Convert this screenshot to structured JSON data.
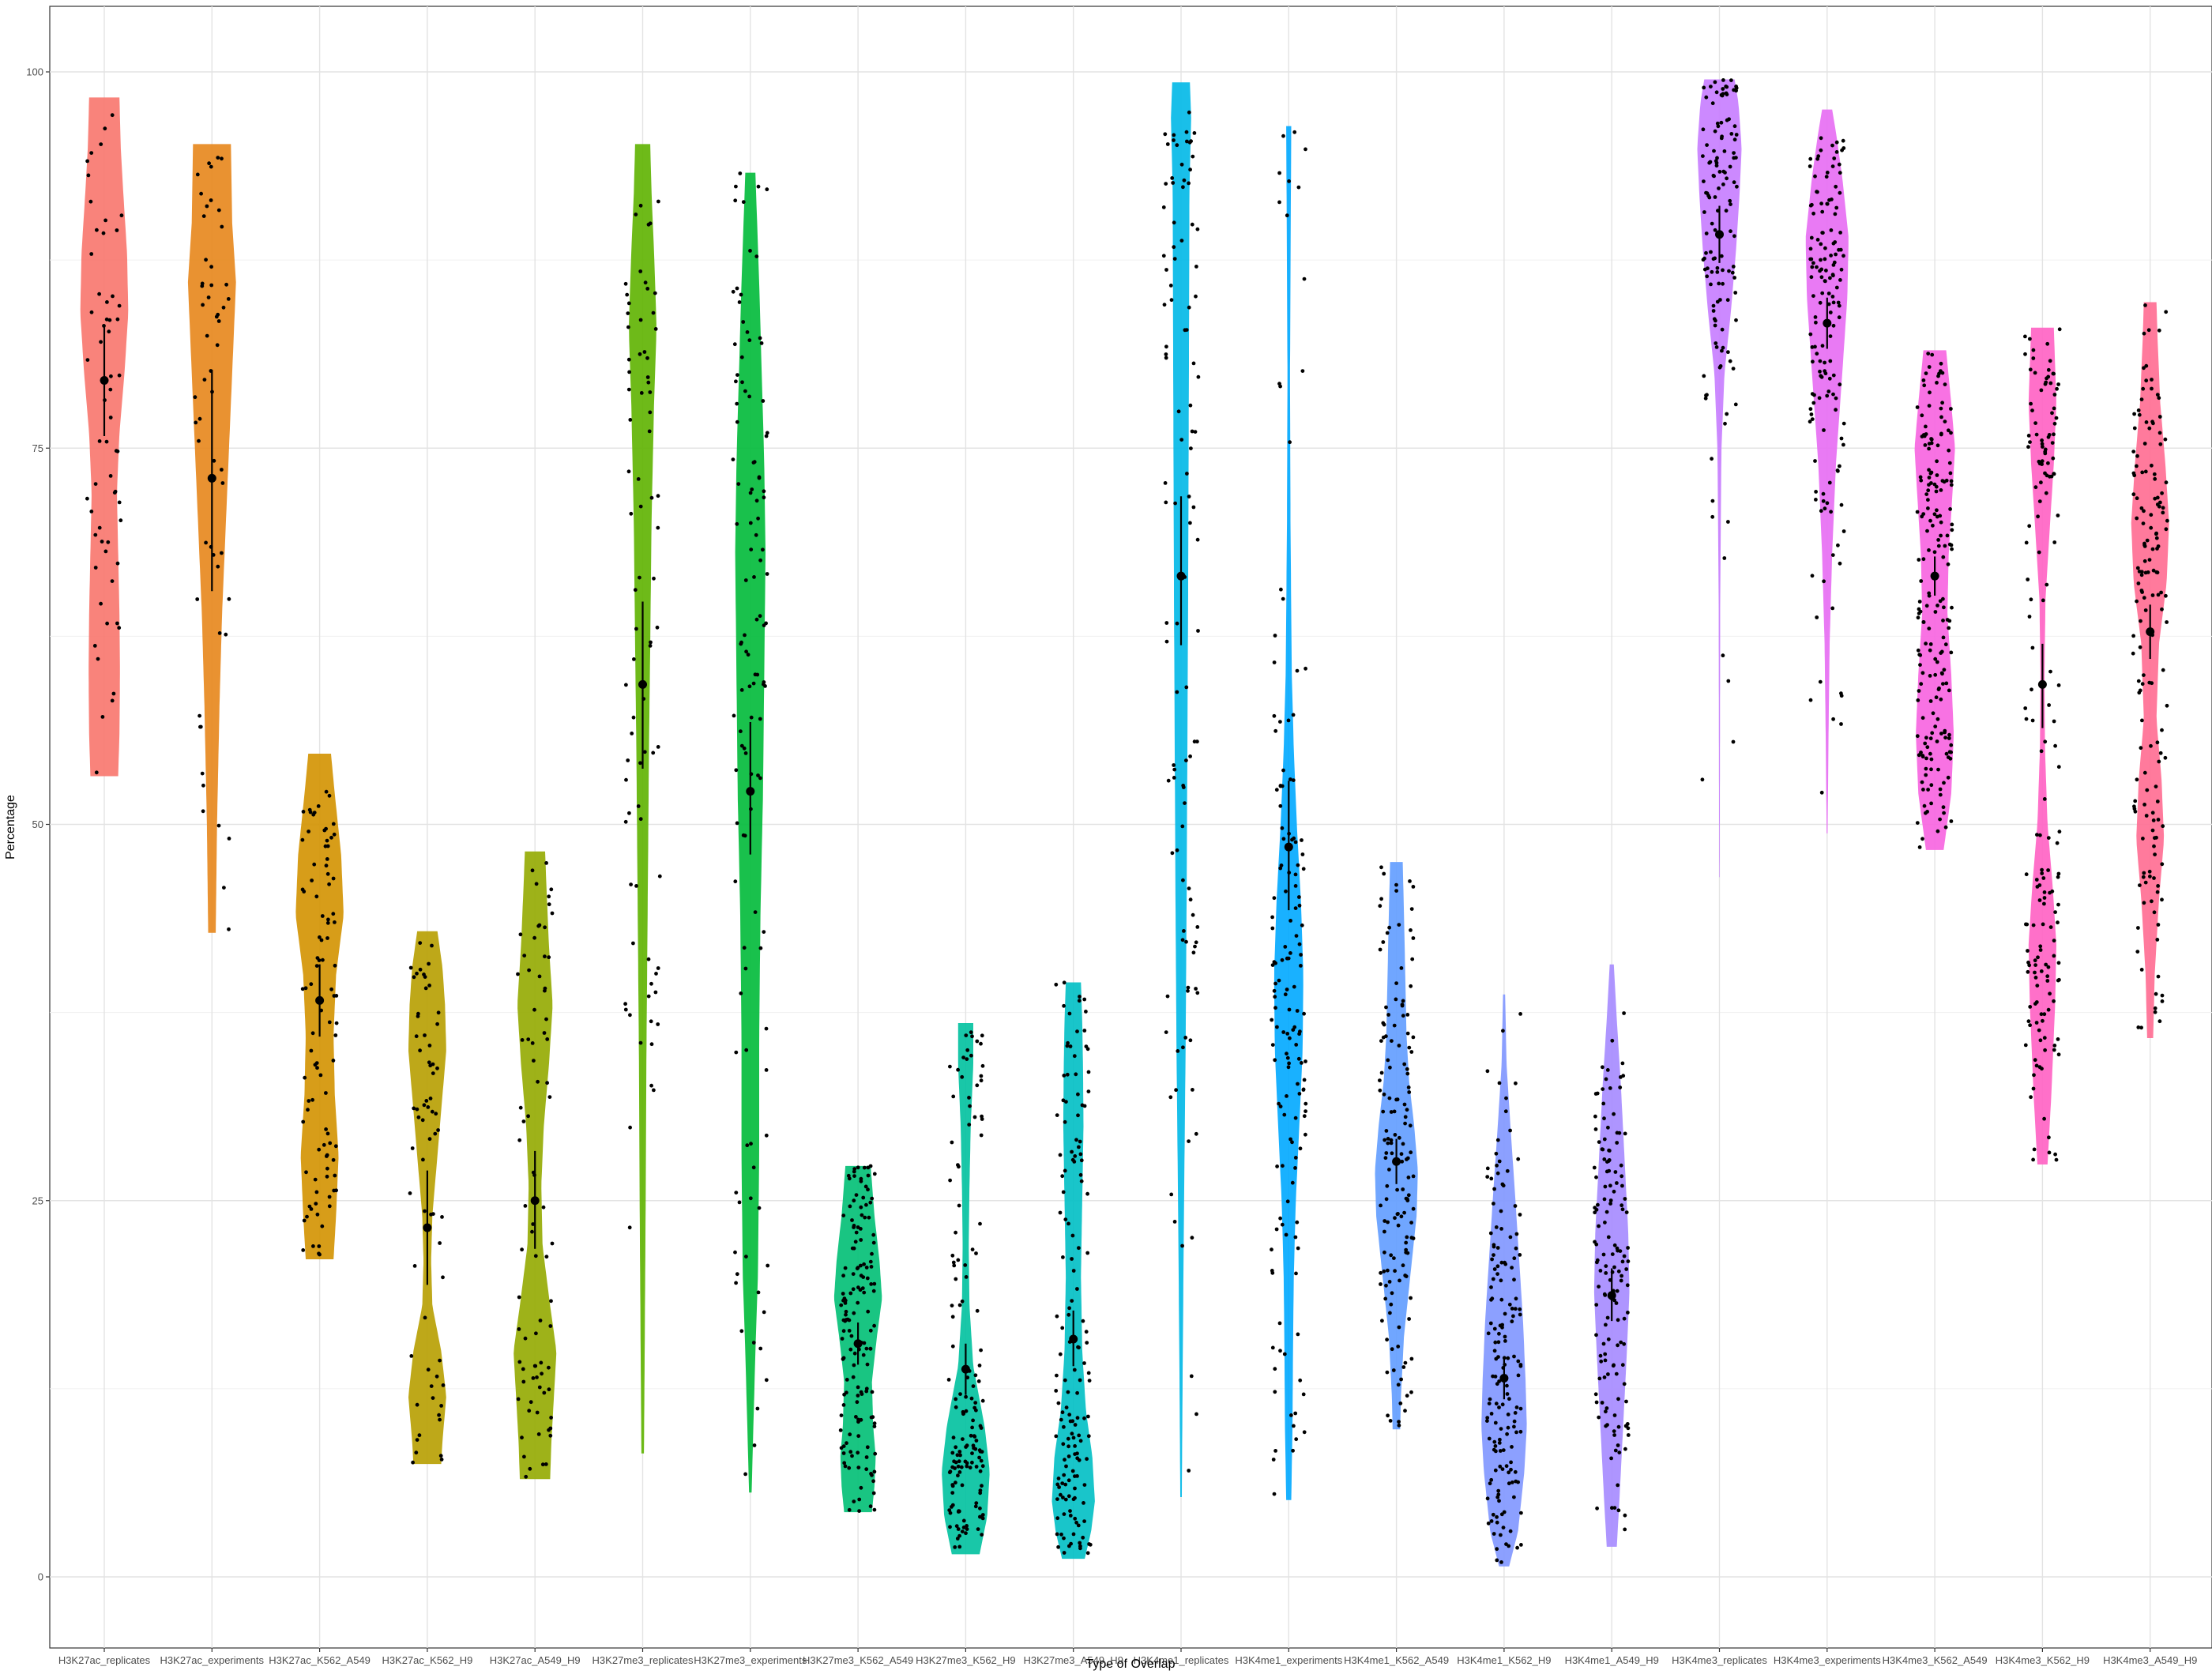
{
  "chart_data": {
    "type": "violin",
    "title": "",
    "xlabel": "Type of Overlap",
    "ylabel": "Percentage",
    "ylim": [
      -4.5,
      104.5
    ],
    "yticks": [
      0,
      25,
      50,
      75,
      100
    ],
    "grid": true,
    "legend": "none",
    "categories": [
      "H3K27ac_replicates",
      "H3K27ac_experiments",
      "H3K27ac_K562_A549",
      "H3K27ac_K562_H9",
      "H3K27ac_A549_H9",
      "H3K27me3_replicates",
      "H3K27me3_experiments",
      "H3K27me3_K562_A549",
      "H3K27me3_K562_H9",
      "H3K27me3_A549_H9",
      "H3K4me1_replicates",
      "H3K4me1_experiments",
      "H3K4me1_K562_A549",
      "H3K4me1_K562_H9",
      "H3K4me1_A549_H9",
      "H3K4me3_replicates",
      "H3K4me3_experiments",
      "H3K4me3_K562_A549",
      "H3K4me3_K562_H9",
      "H3K4me3_A549_H9"
    ],
    "series": [
      {
        "min": 53.2,
        "max": 98.3,
        "mean": 79.5,
        "ci": [
          75.8,
          83.2
        ],
        "n": 60,
        "color": "#F8766D",
        "shape": [
          [
            53.2,
            0.55
          ],
          [
            56,
            0.6
          ],
          [
            60,
            0.62
          ],
          [
            64,
            0.6
          ],
          [
            68,
            0.55
          ],
          [
            72,
            0.5
          ],
          [
            76,
            0.6
          ],
          [
            80,
            0.8
          ],
          [
            84,
            0.95
          ],
          [
            88,
            0.9
          ],
          [
            92,
            0.75
          ],
          [
            95,
            0.65
          ],
          [
            98.3,
            0.6
          ]
        ]
      },
      {
        "min": 42.8,
        "max": 95.2,
        "mean": 73.0,
        "ci": [
          65.5,
          80.2
        ],
        "n": 55,
        "color": "#E7861B",
        "shape": [
          [
            42.8,
            0.15
          ],
          [
            50,
            0.2
          ],
          [
            58,
            0.3
          ],
          [
            64,
            0.4
          ],
          [
            70,
            0.55
          ],
          [
            76,
            0.7
          ],
          [
            82,
            0.85
          ],
          [
            86,
            0.95
          ],
          [
            90,
            0.8
          ],
          [
            95.2,
            0.75
          ]
        ]
      },
      {
        "min": 21.1,
        "max": 54.7,
        "mean": 38.3,
        "ci": [
          35.9,
          40.7
        ],
        "n": 95,
        "color": "#D39200",
        "shape": [
          [
            21.1,
            0.55
          ],
          [
            24,
            0.65
          ],
          [
            28,
            0.75
          ],
          [
            32,
            0.6
          ],
          [
            36,
            0.55
          ],
          [
            40,
            0.65
          ],
          [
            44,
            0.95
          ],
          [
            48,
            0.85
          ],
          [
            52,
            0.6
          ],
          [
            54.7,
            0.45
          ]
        ]
      },
      {
        "min": 7.5,
        "max": 42.9,
        "mean": 23.2,
        "ci": [
          19.4,
          27.0
        ],
        "n": 65,
        "color": "#B79F00",
        "shape": [
          [
            7.5,
            0.55
          ],
          [
            9,
            0.6
          ],
          [
            12,
            0.75
          ],
          [
            15,
            0.55
          ],
          [
            18,
            0.2
          ],
          [
            21,
            0.15
          ],
          [
            24,
            0.2
          ],
          [
            27,
            0.35
          ],
          [
            31,
            0.55
          ],
          [
            35,
            0.75
          ],
          [
            38,
            0.7
          ],
          [
            40.5,
            0.6
          ],
          [
            42.9,
            0.4
          ]
        ]
      },
      {
        "min": 6.5,
        "max": 48.2,
        "mean": 25.0,
        "ci": [
          21.8,
          28.3
        ],
        "n": 80,
        "color": "#93AA00",
        "shape": [
          [
            6.5,
            0.6
          ],
          [
            9,
            0.65
          ],
          [
            12,
            0.75
          ],
          [
            15,
            0.85
          ],
          [
            18,
            0.6
          ],
          [
            22,
            0.3
          ],
          [
            26,
            0.25
          ],
          [
            30,
            0.35
          ],
          [
            34,
            0.55
          ],
          [
            38,
            0.7
          ],
          [
            42,
            0.55
          ],
          [
            46,
            0.45
          ],
          [
            48.2,
            0.4
          ]
        ]
      },
      {
        "min": 8.2,
        "max": 95.2,
        "mean": 59.3,
        "ci": [
          53.7,
          64.8
        ],
        "n": 80,
        "color": "#5EB300",
        "shape": [
          [
            8.2,
            0.05
          ],
          [
            15,
            0.08
          ],
          [
            25,
            0.12
          ],
          [
            35,
            0.15
          ],
          [
            45,
            0.2
          ],
          [
            55,
            0.25
          ],
          [
            62,
            0.3
          ],
          [
            70,
            0.35
          ],
          [
            78,
            0.45
          ],
          [
            83,
            0.55
          ],
          [
            88,
            0.45
          ],
          [
            92,
            0.35
          ],
          [
            95.2,
            0.3
          ]
        ]
      },
      {
        "min": 5.6,
        "max": 93.3,
        "mean": 52.2,
        "ci": [
          48.0,
          56.8
        ],
        "n": 115,
        "color": "#00BA38",
        "shape": [
          [
            5.6,
            0.05
          ],
          [
            10,
            0.12
          ],
          [
            15,
            0.2
          ],
          [
            20,
            0.3
          ],
          [
            28,
            0.35
          ],
          [
            36,
            0.35
          ],
          [
            44,
            0.4
          ],
          [
            52,
            0.5
          ],
          [
            60,
            0.55
          ],
          [
            68,
            0.6
          ],
          [
            74,
            0.55
          ],
          [
            80,
            0.45
          ],
          [
            86,
            0.35
          ],
          [
            93.3,
            0.2
          ]
        ]
      },
      {
        "min": 4.3,
        "max": 27.3,
        "mean": 15.5,
        "ci": [
          14.1,
          16.9
        ],
        "n": 150,
        "color": "#00BF74",
        "shape": [
          [
            4.3,
            0.55
          ],
          [
            6,
            0.65
          ],
          [
            8,
            0.7
          ],
          [
            10,
            0.6
          ],
          [
            13,
            0.55
          ],
          [
            16,
            0.75
          ],
          [
            18.5,
            0.95
          ],
          [
            21,
            0.85
          ],
          [
            24,
            0.65
          ],
          [
            27.3,
            0.5
          ]
        ]
      },
      {
        "min": 1.5,
        "max": 36.8,
        "mean": 13.8,
        "ci": [
          12.1,
          15.5
        ],
        "n": 150,
        "color": "#00C19F",
        "shape": [
          [
            1.5,
            0.55
          ],
          [
            4,
            0.85
          ],
          [
            7,
            0.95
          ],
          [
            10,
            0.75
          ],
          [
            14,
            0.3
          ],
          [
            18,
            0.15
          ],
          [
            22,
            0.12
          ],
          [
            26,
            0.15
          ],
          [
            30,
            0.2
          ],
          [
            34,
            0.3
          ],
          [
            36.8,
            0.3
          ]
        ]
      },
      {
        "min": 1.2,
        "max": 39.5,
        "mean": 15.8,
        "ci": [
          14.0,
          17.7
        ],
        "n": 150,
        "color": "#00BFC4",
        "shape": [
          [
            1.2,
            0.45
          ],
          [
            3,
            0.7
          ],
          [
            5,
            0.85
          ],
          [
            8,
            0.75
          ],
          [
            11,
            0.5
          ],
          [
            15,
            0.35
          ],
          [
            20,
            0.3
          ],
          [
            25,
            0.35
          ],
          [
            30,
            0.4
          ],
          [
            34,
            0.38
          ],
          [
            37,
            0.35
          ],
          [
            39.5,
            0.3
          ]
        ]
      },
      {
        "min": 5.3,
        "max": 99.3,
        "mean": 66.5,
        "ci": [
          61.9,
          71.8
        ],
        "n": 110,
        "color": "#00B8E7",
        "shape": [
          [
            5.3,
            0.03
          ],
          [
            15,
            0.07
          ],
          [
            25,
            0.12
          ],
          [
            35,
            0.18
          ],
          [
            45,
            0.22
          ],
          [
            55,
            0.25
          ],
          [
            65,
            0.28
          ],
          [
            75,
            0.3
          ],
          [
            85,
            0.32
          ],
          [
            92,
            0.33
          ],
          [
            97,
            0.4
          ],
          [
            99.3,
            0.35
          ]
        ]
      },
      {
        "min": 5.1,
        "max": 96.4,
        "mean": 48.5,
        "ci": [
          44.3,
          52.9
        ],
        "n": 150,
        "color": "#00A9FF",
        "shape": [
          [
            5.1,
            0.1
          ],
          [
            10,
            0.15
          ],
          [
            15,
            0.17
          ],
          [
            20,
            0.2
          ],
          [
            25,
            0.28
          ],
          [
            30,
            0.42
          ],
          [
            35,
            0.55
          ],
          [
            40,
            0.58
          ],
          [
            45,
            0.48
          ],
          [
            50,
            0.32
          ],
          [
            55,
            0.2
          ],
          [
            60,
            0.12
          ],
          [
            70,
            0.07
          ],
          [
            80,
            0.05
          ],
          [
            90,
            0.08
          ],
          [
            96.4,
            0.1
          ]
        ]
      },
      {
        "min": 9.8,
        "max": 47.5,
        "mean": 27.6,
        "ci": [
          26.1,
          29.1
        ],
        "n": 150,
        "color": "#619CFF",
        "shape": [
          [
            9.8,
            0.15
          ],
          [
            12,
            0.18
          ],
          [
            16,
            0.3
          ],
          [
            20,
            0.55
          ],
          [
            24,
            0.8
          ],
          [
            27,
            0.85
          ],
          [
            30,
            0.7
          ],
          [
            33,
            0.5
          ],
          [
            36,
            0.4
          ],
          [
            40,
            0.35
          ],
          [
            44,
            0.3
          ],
          [
            47.5,
            0.25
          ]
        ]
      },
      {
        "min": 0.7,
        "max": 38.7,
        "mean": 13.2,
        "ci": [
          11.8,
          14.6
        ],
        "n": 160,
        "color": "#7F96FF",
        "shape": [
          [
            0.7,
            0.2
          ],
          [
            3,
            0.55
          ],
          [
            7,
            0.8
          ],
          [
            10,
            0.9
          ],
          [
            13,
            0.85
          ],
          [
            17,
            0.75
          ],
          [
            21,
            0.6
          ],
          [
            25,
            0.45
          ],
          [
            30,
            0.25
          ],
          [
            34,
            0.1
          ],
          [
            38.7,
            0.04
          ]
        ]
      },
      {
        "min": 2.0,
        "max": 40.7,
        "mean": 18.7,
        "ci": [
          17.0,
          20.5
        ],
        "n": 150,
        "color": "#A58AFF",
        "shape": [
          [
            2.0,
            0.2
          ],
          [
            5,
            0.3
          ],
          [
            10,
            0.45
          ],
          [
            15,
            0.6
          ],
          [
            19,
            0.7
          ],
          [
            23,
            0.65
          ],
          [
            28,
            0.5
          ],
          [
            33,
            0.35
          ],
          [
            37,
            0.2
          ],
          [
            40.7,
            0.08
          ]
        ]
      },
      {
        "min": 46.5,
        "max": 99.5,
        "mean": 89.2,
        "ci": [
          87.3,
          91.1
        ],
        "n": 130,
        "color": "#C77CFF",
        "shape": [
          [
            46.5,
            0.01
          ],
          [
            55,
            0.02
          ],
          [
            65,
            0.03
          ],
          [
            75,
            0.08
          ],
          [
            80,
            0.2
          ],
          [
            84,
            0.45
          ],
          [
            88,
            0.65
          ],
          [
            92,
            0.8
          ],
          [
            95,
            0.88
          ],
          [
            98,
            0.75
          ],
          [
            99.5,
            0.6
          ]
        ]
      },
      {
        "min": 49.4,
        "max": 97.5,
        "mean": 83.3,
        "ci": [
          81.6,
          85.0
        ],
        "n": 150,
        "color": "#E76BF3",
        "shape": [
          [
            49.4,
            0.02
          ],
          [
            55,
            0.05
          ],
          [
            62,
            0.1
          ],
          [
            68,
            0.2
          ],
          [
            74,
            0.35
          ],
          [
            80,
            0.6
          ],
          [
            85,
            0.8
          ],
          [
            89,
            0.85
          ],
          [
            93,
            0.6
          ],
          [
            96,
            0.35
          ],
          [
            97.5,
            0.2
          ]
        ]
      },
      {
        "min": 48.3,
        "max": 81.5,
        "mean": 66.5,
        "ci": [
          65.2,
          67.8
        ],
        "n": 200,
        "color": "#F763E0",
        "shape": [
          [
            48.3,
            0.35
          ],
          [
            52,
            0.65
          ],
          [
            56,
            0.75
          ],
          [
            60,
            0.65
          ],
          [
            64,
            0.5
          ],
          [
            68,
            0.55
          ],
          [
            72,
            0.7
          ],
          [
            75,
            0.8
          ],
          [
            78,
            0.65
          ],
          [
            81.5,
            0.45
          ]
        ]
      },
      {
        "min": 27.4,
        "max": 83.0,
        "mean": 59.3,
        "ci": [
          56.4,
          62.0
        ],
        "n": 170,
        "color": "#FF61C3",
        "shape": [
          [
            27.4,
            0.2
          ],
          [
            32,
            0.35
          ],
          [
            38,
            0.5
          ],
          [
            42,
            0.55
          ],
          [
            46,
            0.4
          ],
          [
            50,
            0.2
          ],
          [
            55,
            0.1
          ],
          [
            60,
            0.08
          ],
          [
            65,
            0.12
          ],
          [
            70,
            0.3
          ],
          [
            74,
            0.45
          ],
          [
            78,
            0.55
          ],
          [
            83,
            0.45
          ]
        ]
      },
      {
        "min": 35.8,
        "max": 84.7,
        "mean": 62.8,
        "ci": [
          61.0,
          64.6
        ],
        "n": 160,
        "color": "#FF6C91",
        "shape": [
          [
            35.8,
            0.12
          ],
          [
            40,
            0.18
          ],
          [
            45,
            0.35
          ],
          [
            49,
            0.55
          ],
          [
            53,
            0.45
          ],
          [
            57,
            0.25
          ],
          [
            62,
            0.35
          ],
          [
            66,
            0.65
          ],
          [
            70,
            0.75
          ],
          [
            74,
            0.6
          ],
          [
            78,
            0.4
          ],
          [
            82,
            0.3
          ],
          [
            84.7,
            0.25
          ]
        ]
      }
    ]
  }
}
